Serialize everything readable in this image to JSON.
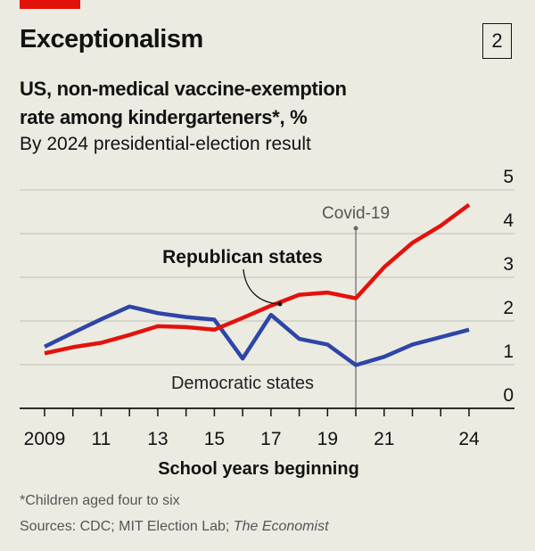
{
  "header": {
    "title": "Exceptionalism",
    "badge": "2",
    "subtitle_line1": "US, non-medical vaccine-exemption",
    "subtitle_line2": "rate among kindergarteners*, %",
    "subtitle_line3": "By 2024 presidential-election result"
  },
  "chart_data": {
    "type": "line",
    "xlabel": "School years beginning",
    "ylabel": "",
    "x": [
      2009,
      2010,
      2011,
      2012,
      2013,
      2014,
      2015,
      2016,
      2017,
      2018,
      2019,
      2020,
      2021,
      2022,
      2023,
      2024
    ],
    "x_tick_labels": [
      {
        "year": 2009,
        "label": "2009"
      },
      {
        "year": 2011,
        "label": "11"
      },
      {
        "year": 2013,
        "label": "13"
      },
      {
        "year": 2015,
        "label": "15"
      },
      {
        "year": 2017,
        "label": "17"
      },
      {
        "year": 2019,
        "label": "19"
      },
      {
        "year": 2021,
        "label": "21"
      },
      {
        "year": 2024,
        "label": "24"
      }
    ],
    "y_ticks": [
      "0",
      "1",
      "2",
      "3",
      "4",
      "5"
    ],
    "ylim": [
      0,
      5
    ],
    "xlim": [
      2009,
      2024
    ],
    "grid": true,
    "series": [
      {
        "name": "Republican states",
        "color": "#E3120B",
        "values": [
          1.26,
          1.4,
          1.5,
          1.68,
          1.88,
          1.86,
          1.8,
          2.07,
          2.35,
          2.6,
          2.65,
          2.52,
          3.23,
          3.79,
          4.18,
          4.66
        ]
      },
      {
        "name": "Democratic states",
        "color": "#2E45A8",
        "values": [
          1.41,
          1.73,
          2.04,
          2.33,
          2.18,
          2.09,
          2.03,
          1.14,
          2.14,
          1.59,
          1.46,
          0.99,
          1.18,
          1.46,
          1.63,
          1.8
        ]
      }
    ],
    "annotations": [
      {
        "text": "Covid-19",
        "x": 2020
      }
    ]
  },
  "footer": {
    "note": "*Children aged four to six",
    "sources": "Sources: CDC; MIT Election Lab; ",
    "sources_italic": "The Economist"
  }
}
